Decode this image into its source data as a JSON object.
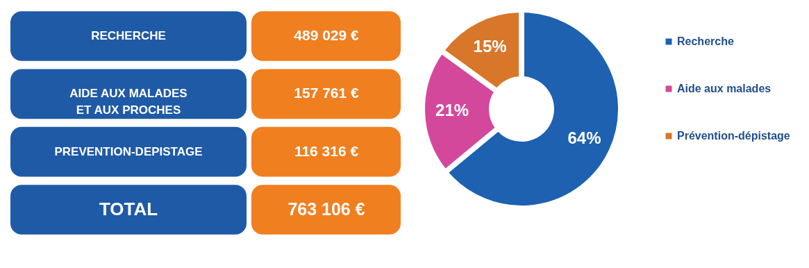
{
  "chart_data": [
    {
      "type": "other",
      "categories": [
        "RECHERCHE",
        "AIDE AUX MALADES\nET AUX  PROCHES",
        "PREVENTION-DEPISTAGE",
        "TOTAL"
      ],
      "value_labels": [
        "489 029 €",
        "157 761 €",
        "116 316 €",
        "763 106 €"
      ]
    },
    {
      "type": "donut",
      "categories": [
        "Recherche",
        "Aide aux malades",
        "Prévention-dépistage"
      ],
      "values": [
        64,
        21,
        15
      ],
      "colors": [
        "#1d61b0",
        "#d4489c",
        "#d8762a"
      ],
      "value_labels": [
        "64%",
        "21%",
        "15%"
      ],
      "legend": "right"
    }
  ]
}
